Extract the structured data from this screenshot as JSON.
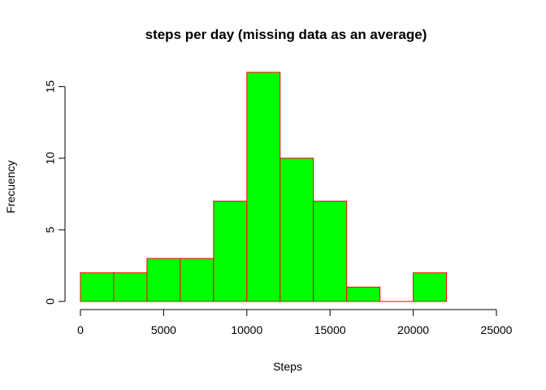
{
  "chart_data": {
    "type": "bar",
    "title": "steps per day (missing data as an average)",
    "xlabel": "Steps",
    "ylabel": "Frecuency",
    "bin_width": 2000,
    "bins": [
      {
        "start": 0,
        "end": 2000,
        "count": 2
      },
      {
        "start": 2000,
        "end": 4000,
        "count": 2
      },
      {
        "start": 4000,
        "end": 6000,
        "count": 3
      },
      {
        "start": 6000,
        "end": 8000,
        "count": 3
      },
      {
        "start": 8000,
        "end": 10000,
        "count": 7
      },
      {
        "start": 10000,
        "end": 12000,
        "count": 16
      },
      {
        "start": 12000,
        "end": 14000,
        "count": 10
      },
      {
        "start": 14000,
        "end": 16000,
        "count": 7
      },
      {
        "start": 16000,
        "end": 18000,
        "count": 1
      },
      {
        "start": 18000,
        "end": 20000,
        "count": 0
      },
      {
        "start": 20000,
        "end": 22000,
        "count": 2
      }
    ],
    "xlim": [
      0,
      25000
    ],
    "ylim": [
      0,
      16
    ],
    "x_ticks": [
      0,
      5000,
      10000,
      15000,
      20000,
      25000
    ],
    "y_ticks": [
      0,
      5,
      10,
      15
    ],
    "bar_fill": "#00ff00",
    "bar_border": "#ff0000",
    "grid": false
  }
}
